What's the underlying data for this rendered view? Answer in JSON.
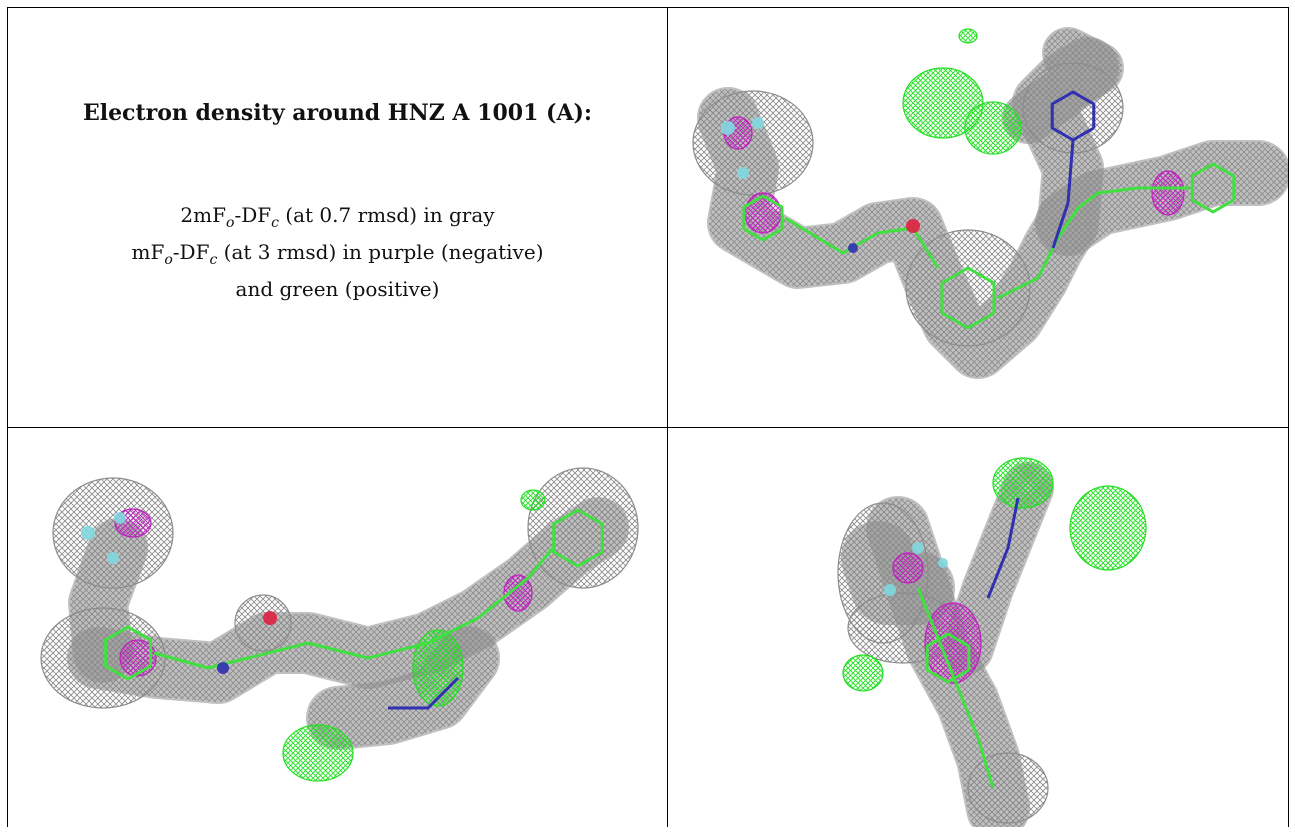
{
  "heading": "Electron density around HNZ A 1001 (A):",
  "legend": {
    "line1": {
      "pre": "2mF",
      "sub1": "o",
      "mid": "-DF",
      "sub2": "c",
      "post": " (at 0.7 rmsd) in gray"
    },
    "line2": {
      "pre": "mF",
      "sub1": "o",
      "mid": "-DF",
      "sub2": "c",
      "post": " (at 3 rmsd) in purple (negative)"
    },
    "line3": "and green (positive)"
  },
  "colors": {
    "density_2fofc": "#8c8c8c",
    "fofc_negative": "#c020c0",
    "fofc_positive": "#22e022",
    "nitrogen": "#3030b0",
    "oxygen": "#e02040",
    "fluorine": "#80d8e0",
    "carbon": "#40e040"
  },
  "views": [
    {
      "name": "view-1"
    },
    {
      "name": "view-2"
    },
    {
      "name": "view-3"
    }
  ]
}
